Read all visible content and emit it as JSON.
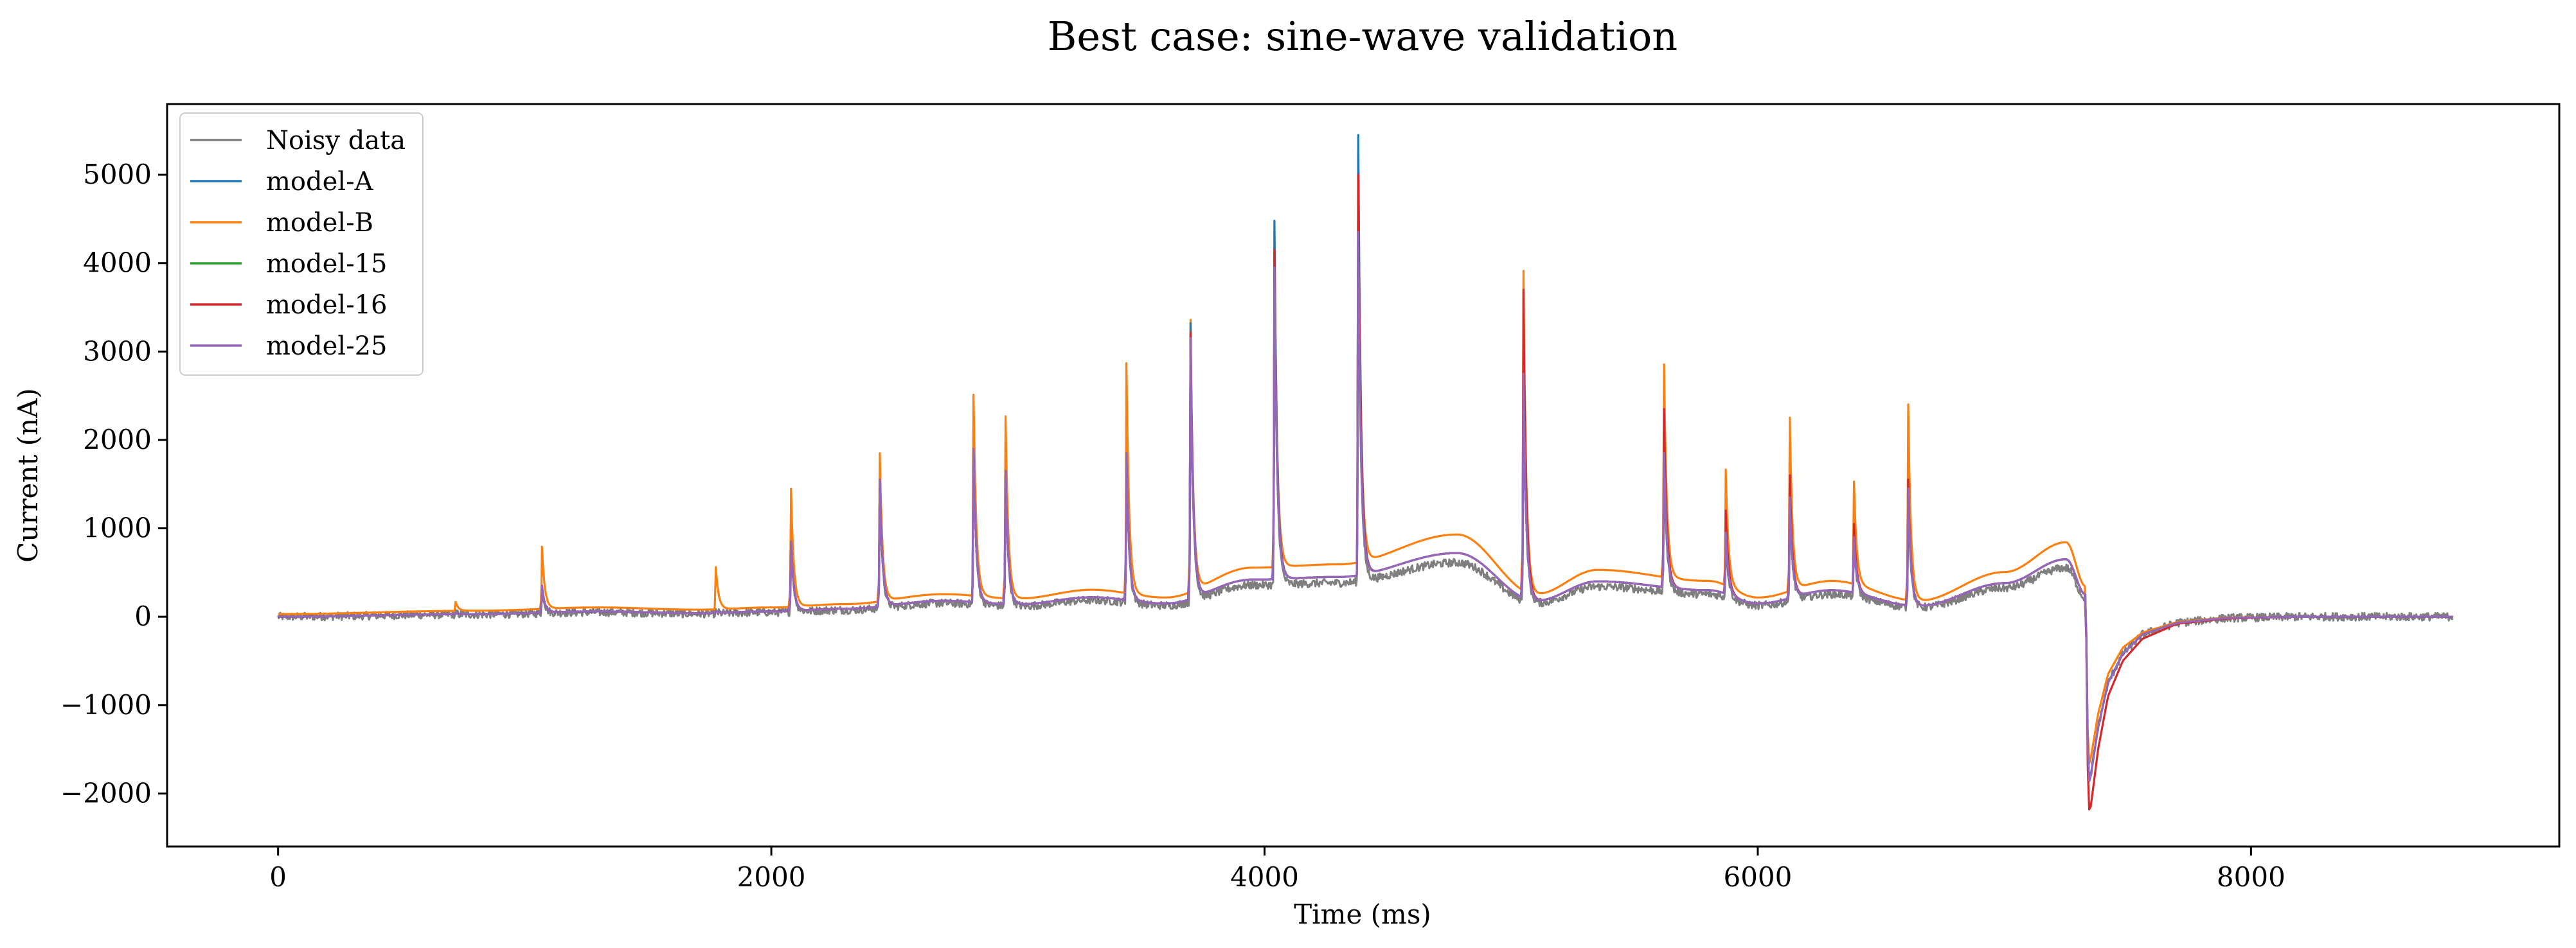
{
  "chart_data": {
    "type": "line",
    "title": "Best case: sine-wave validation",
    "xlabel": "Time (ms)",
    "ylabel": "Current (nA)",
    "xlim": [
      -450,
      9250
    ],
    "ylim": [
      -2600,
      5800
    ],
    "xticks": [
      0,
      2000,
      4000,
      6000,
      8000
    ],
    "yticks": [
      -2000,
      -1000,
      0,
      1000,
      2000,
      3000,
      4000,
      5000
    ],
    "xtick_labels": [
      "0",
      "2000",
      "4000",
      "6000",
      "8000"
    ],
    "ytick_labels": [
      "−2000",
      "−1000",
      "0",
      "1000",
      "2000",
      "3000",
      "4000",
      "5000"
    ],
    "grid": false,
    "legend_position": "top-left",
    "series": [
      {
        "name": "Noisy data",
        "color": "#7f7f7f"
      },
      {
        "name": "model-A",
        "color": "#1f77b4"
      },
      {
        "name": "model-B",
        "color": "#ff7f0e"
      },
      {
        "name": "model-15",
        "color": "#2ca02c"
      },
      {
        "name": "model-16",
        "color": "#d62728"
      },
      {
        "name": "model-25",
        "color": "#9467bd"
      }
    ],
    "baseline_points": [
      [
        0,
        0
      ],
      [
        800,
        30
      ],
      [
        1300,
        60
      ],
      [
        1700,
        40
      ],
      [
        2000,
        60
      ],
      [
        2300,
        90
      ],
      [
        2700,
        180
      ],
      [
        3000,
        140
      ],
      [
        3300,
        220
      ],
      [
        3600,
        150
      ],
      [
        3950,
        420
      ],
      [
        4300,
        450
      ],
      [
        4780,
        720
      ],
      [
        5100,
        180
      ],
      [
        5350,
        400
      ],
      [
        5800,
        300
      ],
      [
        6000,
        150
      ],
      [
        6300,
        300
      ],
      [
        6650,
        120
      ],
      [
        7000,
        380
      ],
      [
        7250,
        650
      ],
      [
        7330,
        250
      ]
    ],
    "transient": {
      "x": [
        7330,
        7340,
        7350,
        7380,
        7420,
        7480,
        7560,
        7700,
        7900,
        8200,
        8800
      ],
      "model_16": [
        250,
        -2200,
        -2150,
        -1500,
        -900,
        -500,
        -250,
        -80,
        -20,
        0,
        0
      ],
      "model_B": [
        250,
        -1700,
        -1600,
        -1100,
        -650,
        -350,
        -180,
        -60,
        -10,
        0,
        0
      ],
      "others": [
        250,
        -1900,
        -1800,
        -1250,
        -750,
        -420,
        -200,
        -70,
        -15,
        0,
        0
      ]
    },
    "spikes": [
      {
        "x": 720,
        "model_B": 130,
        "others": 40
      },
      {
        "x": 1070,
        "model_B": 750,
        "others": 350
      },
      {
        "x": 1775,
        "model_B": 520,
        "others": 60
      },
      {
        "x": 2080,
        "model_B": 1400,
        "others": 850
      },
      {
        "x": 2440,
        "model_B": 1790,
        "others": 1550
      },
      {
        "x": 2820,
        "model_B": 2440,
        "others": 1900
      },
      {
        "x": 2950,
        "model_B": 2200,
        "others": 1650
      },
      {
        "x": 3440,
        "model_B": 2790,
        "others": 1850
      },
      {
        "x": 3700,
        "model_A": 3320,
        "model_B": 3280,
        "model_16": 3220,
        "others": 3150
      },
      {
        "x": 4040,
        "model_A": 4480,
        "model_B": 4220,
        "model_16": 4150,
        "others": 3950
      },
      {
        "x": 4380,
        "model_A": 5450,
        "model_B": 5100,
        "model_16": 5000,
        "others": 4350
      },
      {
        "x": 5050,
        "model_B": 3830,
        "model_16": 3700,
        "others": 2750
      },
      {
        "x": 5620,
        "model_B": 2740,
        "model_16": 2350,
        "others": 1850
      },
      {
        "x": 5870,
        "model_B": 1570,
        "model_16": 1200,
        "others": 950
      },
      {
        "x": 6130,
        "model_B": 2170,
        "model_16": 1600,
        "others": 1350
      },
      {
        "x": 6390,
        "model_B": 1430,
        "model_16": 1050,
        "others": 900
      },
      {
        "x": 6610,
        "model_B": 2340,
        "model_16": 1550,
        "others": 1450
      }
    ],
    "noise_amplitude": 45,
    "x_end": 8820
  }
}
